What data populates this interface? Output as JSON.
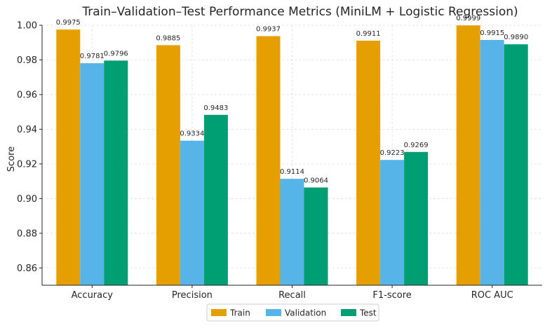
{
  "chart_data": {
    "type": "bar",
    "title": "Train–Validation–Test Performance Metrics (MiniLM + Logistic Regression)",
    "xlabel": "",
    "ylabel": "Score",
    "ylim": [
      0.85,
      1.0
    ],
    "yticks": [
      "0.86",
      "0.88",
      "0.90",
      "0.92",
      "0.94",
      "0.96",
      "0.98",
      "1.00"
    ],
    "ytick_values": [
      0.86,
      0.88,
      0.9,
      0.92,
      0.94,
      0.96,
      0.98,
      1.0
    ],
    "grid": true,
    "legend_position": "bottom-center",
    "categories": [
      "Accuracy",
      "Precision",
      "Recall",
      "F1-score",
      "ROC AUC"
    ],
    "series": [
      {
        "name": "Train",
        "color": "#E69F00",
        "values": [
          0.9975,
          0.9885,
          0.9937,
          0.9911,
          0.9999
        ],
        "labels": [
          "0.9975",
          "0.9885",
          "0.9937",
          "0.9911",
          "0.9999"
        ]
      },
      {
        "name": "Validation",
        "color": "#56B4E9",
        "values": [
          0.9781,
          0.9334,
          0.9114,
          0.9223,
          0.9915
        ],
        "labels": [
          "0.9781",
          "0.9334",
          "0.9114",
          "0.9223",
          "0.9915"
        ]
      },
      {
        "name": "Test",
        "color": "#009E73",
        "values": [
          0.9796,
          0.9483,
          0.9064,
          0.9269,
          0.989
        ],
        "labels": [
          "0.9796",
          "0.9483",
          "0.9064",
          "0.9269",
          "0.9890"
        ]
      }
    ]
  }
}
